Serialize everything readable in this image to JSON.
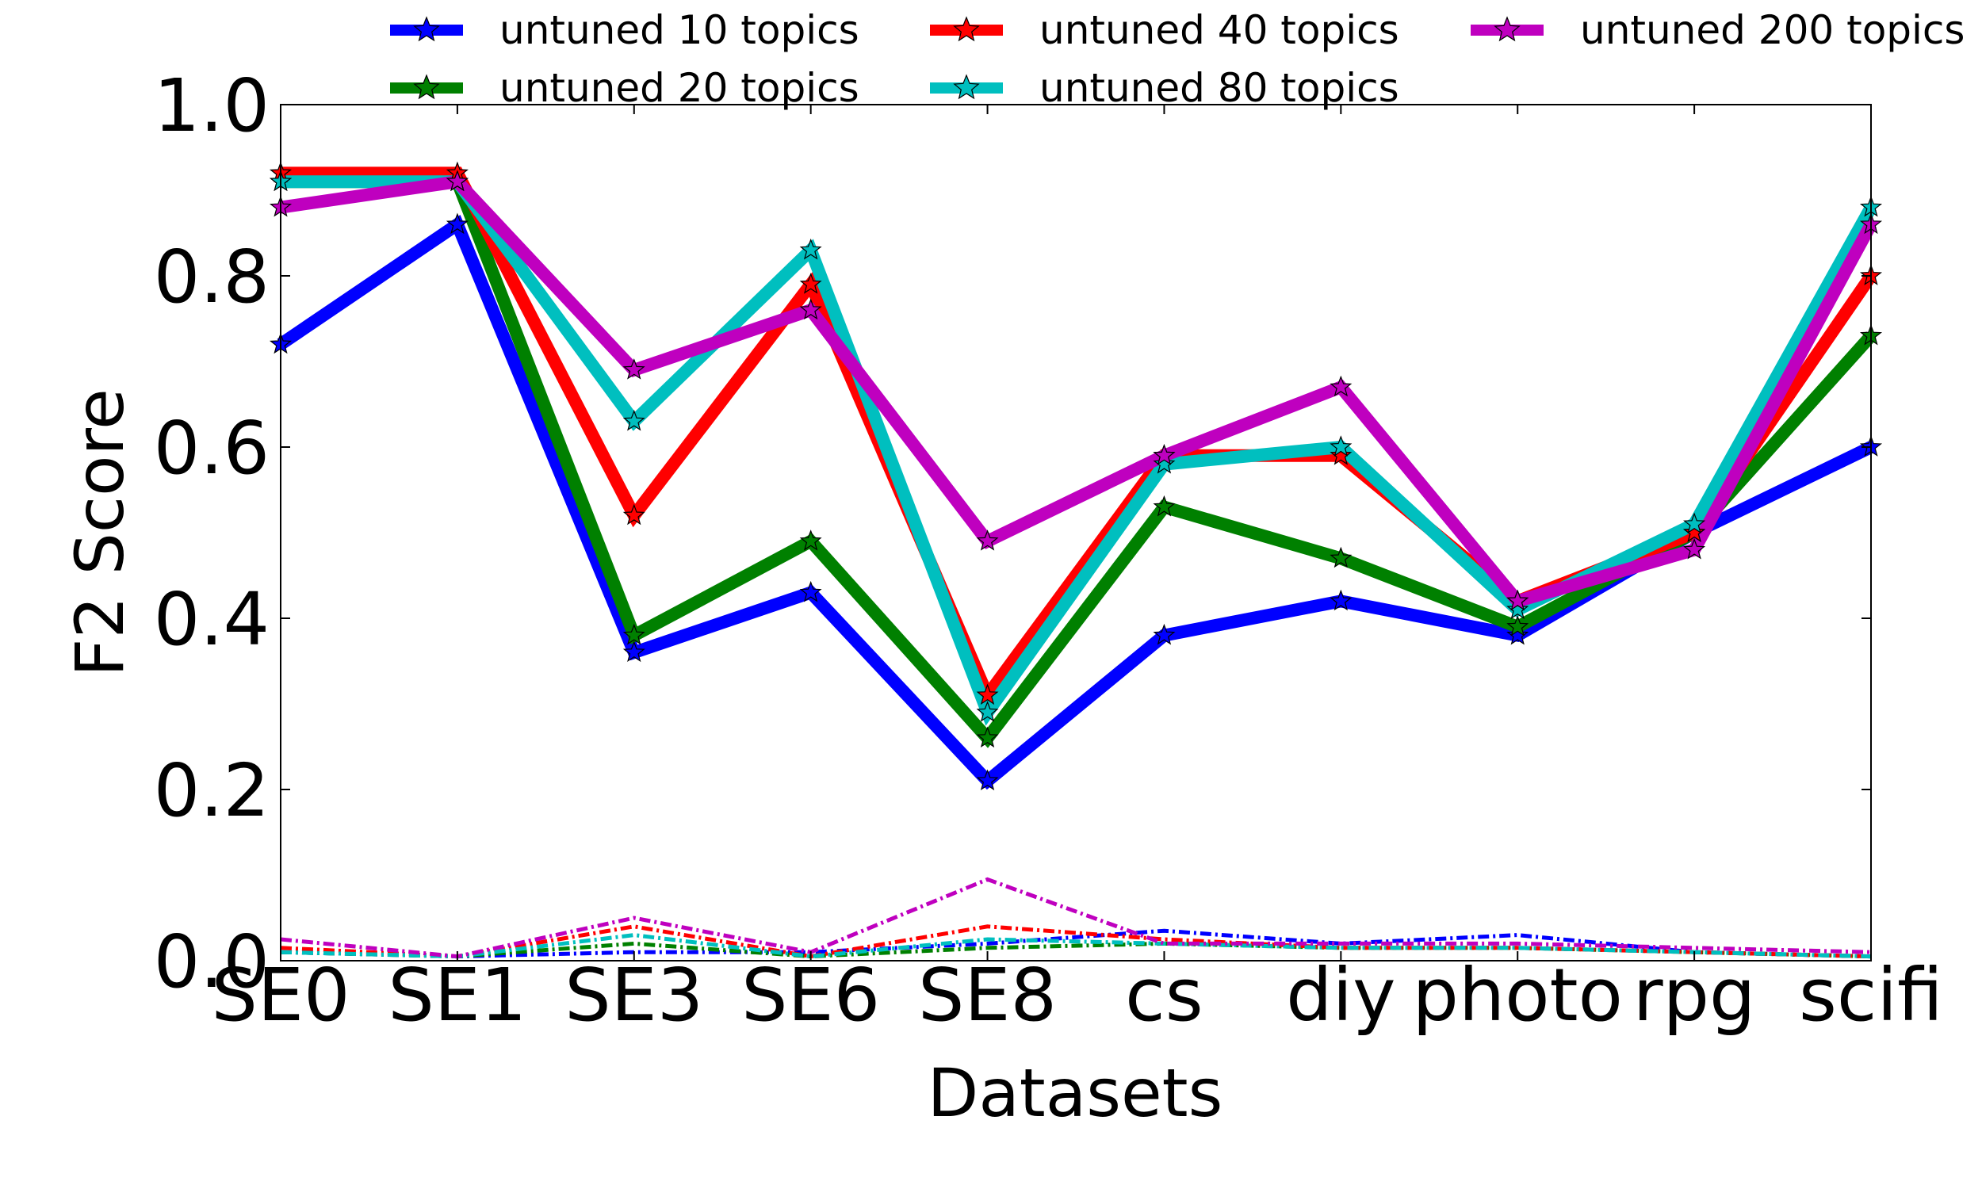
{
  "chart_data": {
    "type": "line",
    "title": "",
    "xlabel": "Datasets",
    "ylabel": "F2 Score",
    "ylim": [
      0,
      1.0
    ],
    "yticks": [
      "0.0",
      "0.2",
      "0.4",
      "0.6",
      "0.8",
      "1.0"
    ],
    "grid": false,
    "legend_position": "top, outside plot",
    "categories": [
      "SE0",
      "SE1",
      "SE3",
      "SE6",
      "SE8",
      "cs",
      "diy",
      "photo",
      "rpg",
      "scifi"
    ],
    "series": [
      {
        "name": "untuned 10 topics",
        "color": "#0000ff",
        "marker": "star",
        "style": "solid",
        "values": [
          0.72,
          0.86,
          0.36,
          0.43,
          0.21,
          0.38,
          0.42,
          0.38,
          0.5,
          0.6
        ]
      },
      {
        "name": "untuned 20 topics",
        "color": "#008000",
        "marker": "star",
        "style": "solid",
        "values": [
          0.91,
          0.91,
          0.38,
          0.49,
          0.26,
          0.53,
          0.47,
          0.39,
          0.5,
          0.73
        ]
      },
      {
        "name": "untuned 40 topics",
        "color": "#ff0000",
        "marker": "star",
        "style": "solid",
        "values": [
          0.92,
          0.92,
          0.52,
          0.79,
          0.31,
          0.59,
          0.59,
          0.42,
          0.5,
          0.8
        ]
      },
      {
        "name": "untuned 80 topics",
        "color": "#00bfbf",
        "marker": "star",
        "style": "solid",
        "values": [
          0.91,
          0.91,
          0.63,
          0.83,
          0.29,
          0.58,
          0.6,
          0.41,
          0.51,
          0.88
        ]
      },
      {
        "name": "untuned 200 topics",
        "color": "#bf00bf",
        "marker": "star",
        "style": "solid",
        "values": [
          0.88,
          0.91,
          0.69,
          0.76,
          0.49,
          0.59,
          0.67,
          0.42,
          0.48,
          0.86
        ]
      }
    ],
    "variance_series": [
      {
        "name": "untuned 10 topics",
        "color": "#0000ff",
        "style": "dashdot",
        "values": [
          0.01,
          0.005,
          0.01,
          0.01,
          0.02,
          0.035,
          0.02,
          0.03,
          0.01,
          0.005
        ]
      },
      {
        "name": "untuned 20 topics",
        "color": "#008000",
        "style": "dashdot",
        "values": [
          0.01,
          0.005,
          0.02,
          0.005,
          0.015,
          0.02,
          0.015,
          0.015,
          0.01,
          0.005
        ]
      },
      {
        "name": "untuned 40 topics",
        "color": "#ff0000",
        "style": "dashdot",
        "values": [
          0.015,
          0.005,
          0.04,
          0.005,
          0.04,
          0.025,
          0.015,
          0.015,
          0.01,
          0.005
        ]
      },
      {
        "name": "untuned 80 topics",
        "color": "#00bfbf",
        "style": "dashdot",
        "values": [
          0.01,
          0.005,
          0.03,
          0.005,
          0.025,
          0.02,
          0.015,
          0.015,
          0.01,
          0.005
        ]
      },
      {
        "name": "untuned 200 topics",
        "color": "#bf00bf",
        "style": "dashdot",
        "values": [
          0.025,
          0.005,
          0.05,
          0.01,
          0.095,
          0.02,
          0.02,
          0.02,
          0.015,
          0.01
        ]
      }
    ]
  }
}
